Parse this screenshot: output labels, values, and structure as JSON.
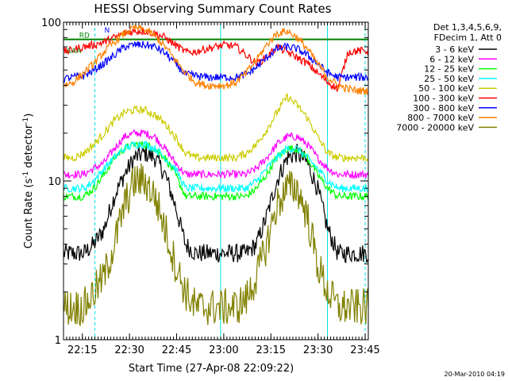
{
  "chart_data": {
    "type": "line",
    "title": "HESSI Observing Summary Count Rates",
    "xlabel": "Start Time (27-Apr-08 22:09:22)",
    "ylabel_main": "Count Rate (s",
    "ylabel_exp": "-1",
    "ylabel_tail": " detector",
    "ylabel_exp2": "-1",
    "ylabel_close": ")",
    "y_scale": "log",
    "ylim": [
      1,
      100
    ],
    "xlim_minutes": [
      0,
      97
    ],
    "x_ticks": [
      {
        "label": "22:15",
        "minute": 6
      },
      {
        "label": "22:30",
        "minute": 21
      },
      {
        "label": "22:45",
        "minute": 36
      },
      {
        "label": "23:00",
        "minute": 51
      },
      {
        "label": "23:15",
        "minute": 66
      },
      {
        "label": "23:30",
        "minute": 81
      },
      {
        "label": "23:45",
        "minute": 96
      }
    ],
    "y_ticks": [
      {
        "label": "1",
        "value": 1
      },
      {
        "label": "10",
        "value": 10
      },
      {
        "label": "100",
        "value": 100
      }
    ],
    "legend_header": [
      "Det 1,3,4,5,6,9,",
      "FDecim 1, Att 0"
    ],
    "legend_position": "right",
    "series": [
      {
        "name": "3 - 6 keV",
        "color": "#000000",
        "values": [
          3.5,
          3.5,
          3.5,
          4,
          5,
          8,
          11,
          14,
          15,
          14,
          11,
          7,
          4,
          3.5,
          3.5,
          3.5,
          3.5,
          3.5,
          3.5,
          4,
          6,
          10,
          14,
          15,
          13,
          9,
          5,
          3.5,
          3.5,
          3.5,
          3.5
        ]
      },
      {
        "name": "6 - 12 keV",
        "color": "#ff00ff",
        "values": [
          11,
          11,
          11,
          12,
          13,
          16,
          19,
          20,
          20,
          19,
          16,
          13,
          11,
          11,
          11,
          11,
          11,
          11,
          11,
          12,
          14,
          17,
          19,
          19,
          17,
          14,
          12,
          11,
          11,
          11,
          11
        ]
      },
      {
        "name": "12 - 25 keV",
        "color": "#00ff00",
        "values": [
          8,
          8,
          8,
          9,
          11,
          14,
          16,
          17,
          17,
          16,
          14,
          11,
          8,
          8,
          8,
          8,
          8,
          8,
          8,
          9,
          11,
          14,
          16,
          16,
          14,
          11,
          9,
          8,
          8,
          8,
          8
        ]
      },
      {
        "name": "25 - 50 keV",
        "color": "#00ffff",
        "values": [
          9,
          9,
          9,
          10,
          12,
          14,
          16,
          17,
          17,
          16,
          14,
          12,
          9,
          9,
          9,
          9,
          9,
          9,
          9,
          10,
          12,
          14,
          16,
          16,
          14,
          12,
          10,
          9,
          9,
          9,
          9
        ]
      },
      {
        "name": "50 - 100 keV",
        "color": "#cccc00",
        "values": [
          14,
          14,
          15,
          17,
          20,
          24,
          27,
          28,
          28,
          26,
          23,
          19,
          15,
          14,
          14,
          14,
          14,
          14,
          15,
          17,
          21,
          27,
          34,
          30,
          25,
          19,
          15,
          14,
          14,
          14,
          14
        ]
      },
      {
        "name": "100 - 300 keV",
        "color": "#ff0000",
        "values": [
          65,
          67,
          70,
          72,
          75,
          80,
          85,
          88,
          88,
          85,
          80,
          72,
          65,
          65,
          68,
          70,
          72,
          70,
          62,
          55,
          60,
          70,
          65,
          60,
          55,
          48,
          42,
          38,
          65,
          66,
          66
        ]
      },
      {
        "name": "300 - 800 keV",
        "color": "#0000ff",
        "values": [
          44,
          45,
          46,
          50,
          55,
          62,
          70,
          72,
          72,
          70,
          64,
          55,
          47,
          46,
          45,
          45,
          45,
          45,
          47,
          52,
          60,
          68,
          70,
          68,
          62,
          55,
          48,
          45,
          45,
          45,
          45
        ]
      },
      {
        "name": "800 - 7000 keV",
        "color": "#ff8000",
        "values": [
          40,
          42,
          48,
          55,
          65,
          75,
          85,
          92,
          90,
          82,
          70,
          58,
          48,
          42,
          40,
          40,
          40,
          42,
          48,
          58,
          72,
          85,
          88,
          80,
          68,
          55,
          45,
          40,
          38,
          37,
          37
        ]
      },
      {
        "name": "7000 - 20000 keV",
        "color": "#808000",
        "values": [
          1.6,
          1.6,
          1.6,
          2,
          2.5,
          4,
          7,
          10,
          10,
          8,
          5,
          3,
          2,
          1.6,
          1.6,
          1.6,
          1.6,
          1.6,
          1.8,
          2.5,
          4,
          7,
          9,
          9,
          6,
          3,
          2,
          1.6,
          1.6,
          1.6,
          1.6
        ]
      }
    ],
    "green_reference_value": 78,
    "annotations": [
      {
        "text": "RD",
        "color": "#008000"
      },
      {
        "text": "SAA",
        "color": "#008000"
      },
      {
        "text": "N",
        "color": "#0000ff"
      }
    ],
    "vertical_markers_minutes": [
      0,
      10,
      50,
      84,
      96
    ]
  },
  "footer": {
    "timestamp": "20-Mar-2010 04:19"
  }
}
